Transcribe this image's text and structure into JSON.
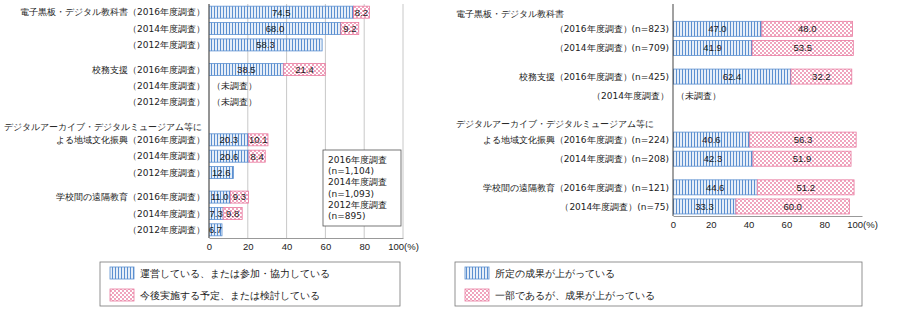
{
  "chart_data": [
    {
      "type": "bar",
      "orientation": "horizontal",
      "stacked": true,
      "data_labels": true,
      "grid": true,
      "legend": "bottom",
      "categories": [
        "電子黒板・デジタル教科書（2016年度調査）",
        "（2014年度調査）",
        "（2012年度調査）",
        "校務支援（2016年度調査）",
        "（2014年度調査）",
        "（2012年度調査）",
        "デジタルアーカイブ・デジタルミュージアム等に\nよる地域文化振興（2016年度調査）",
        "（2014年度調査）",
        "（2012年度調査）",
        "学校間の遠隔教育（2016年度調査）",
        "（2014年度調査）",
        "（2012年度調査）"
      ],
      "series": [
        {
          "name": "運営している、または参加・協力している",
          "color": "#5b8fd0",
          "values": [
            74.5,
            68.0,
            58.3,
            38.5,
            null,
            null,
            20.3,
            20.6,
            12.6,
            11.0,
            7.3,
            6.7
          ],
          "value_labels": [
            "74.5",
            "68.0",
            "58.3",
            "38.5",
            null,
            null,
            "20.3",
            "20.6",
            "12.6",
            "11.0",
            "7.3",
            "6.7"
          ]
        },
        {
          "name": "今後実施する予定、または検討している",
          "color": "#e9799f",
          "values": [
            8.2,
            9.2,
            null,
            21.4,
            null,
            null,
            10.1,
            8.4,
            null,
            9.3,
            9.8,
            null
          ],
          "value_labels": [
            "8.2",
            "9.2",
            null,
            "21.4",
            null,
            null,
            "10.1",
            "8.4",
            null,
            "9.3",
            "9.8",
            null
          ]
        }
      ],
      "xlim": [
        0,
        100
      ],
      "xticks": [
        0,
        20,
        40,
        60,
        80,
        {
          "value": 100,
          "label": "100(%)"
        }
      ],
      "annotations": [
        {
          "text": "（未調査）",
          "category": 4
        },
        {
          "text": "（未調査）",
          "category": 5
        }
      ],
      "note": "2016年度調査\n(n=1,104)\n2014年度調査\n(n=1,093)\n2012年度調査\n(n=895)"
    },
    {
      "type": "bar",
      "orientation": "horizontal",
      "stacked": true,
      "data_labels": true,
      "grid": false,
      "legend": "bottom",
      "categories": [
        "電子黒板・デジタル教科書\n（2016年度調査）(n=823)",
        "（2014年度調査）(n=709)",
        "校務支援（2016年度調査）(n=425)",
        "（2014年度調査）",
        "デジタルアーカイブ・デジタルミュージアム等に\nよる地域文化振興（2016年度調査）(n=224)",
        "（2014年度調査）(n=208)",
        "学校間の遠隔教育（2016年度調査）(n=121)",
        "（2014年度調査）(n=75)"
      ],
      "series": [
        {
          "name": "所定の成果が上がっている",
          "color": "#5b8fd0",
          "values": [
            47.0,
            41.9,
            62.4,
            null,
            40.6,
            42.3,
            44.6,
            33.3
          ],
          "value_labels": [
            "47.0",
            "41.9",
            "62.4",
            null,
            "40.6",
            "42.3",
            "44.6",
            "33.3"
          ]
        },
        {
          "name": "一部であるが、成果が上がっている",
          "color": "#e9799f",
          "values": [
            48.0,
            53.5,
            32.2,
            null,
            56.3,
            51.9,
            51.2,
            60.0
          ],
          "value_labels": [
            "48.0",
            "53.5",
            "32.2",
            null,
            "56.3",
            "51.9",
            "51.2",
            "60.0"
          ]
        }
      ],
      "xlim": [
        0,
        100
      ],
      "xticks": [
        0,
        20,
        40,
        60,
        80,
        {
          "value": 100,
          "label": "100(%)"
        }
      ],
      "annotations": [
        {
          "text": "（未調査）",
          "category": 3
        }
      ]
    }
  ]
}
